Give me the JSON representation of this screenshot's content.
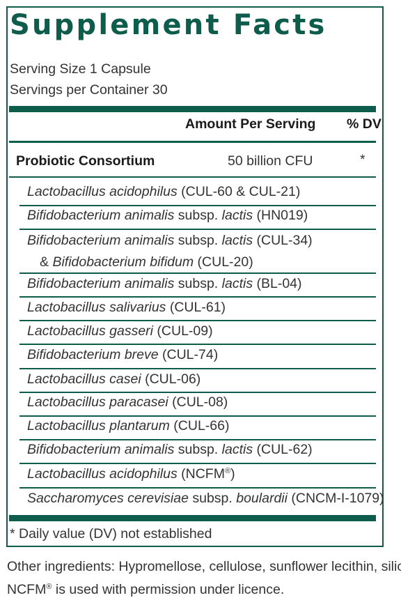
{
  "title": "Supplement Facts",
  "serving_size": "Serving Size 1 Capsule",
  "servings_per_container": "Servings per Container 30",
  "header": {
    "amount": "Amount Per Serving",
    "dv": "% DV"
  },
  "consortium": {
    "name": "Probiotic Consortium",
    "amount": "50 billion CFU",
    "dv": "*"
  },
  "strains": [
    {
      "italic": "Lactobacillus acidophilus",
      "rest": " (CUL-60 & CUL-21)"
    },
    {
      "italic": "Bifidobacterium animalis",
      "mid": " subsp. ",
      "italic2": "lactis",
      "rest": " (HN019)"
    },
    {
      "italic": "Bifidobacterium animalis",
      "mid": " subsp. ",
      "italic2": "lactis",
      "rest": " (CUL-34)",
      "line2_prefix": "& ",
      "line2_italic": "Bifidobacterium bifidum",
      "line2_rest": " (CUL-20)"
    },
    {
      "italic": "Bifidobacterium animalis",
      "mid": " subsp. ",
      "italic2": "lactis",
      "rest": " (BL-04)"
    },
    {
      "italic": "Lactobacillus salivarius",
      "rest": " (CUL-61)"
    },
    {
      "italic": "Lactobacillus gasseri",
      "rest": " (CUL-09)"
    },
    {
      "italic": "Bifidobacterium breve",
      "rest": " (CUL-74)"
    },
    {
      "italic": "Lactobacillus casei",
      "rest": " (CUL-06)"
    },
    {
      "italic": "Lactobacillus paracasei",
      "rest": " (CUL-08)"
    },
    {
      "italic": "Lactobacillus plantarum",
      "rest": " (CUL-66)"
    },
    {
      "italic": "Bifidobacterium animalis",
      "mid": " subsp. ",
      "italic2": "lactis",
      "rest": " (CUL-62)"
    },
    {
      "italic": "Lactobacillus acidophilus",
      "rest": " (NCFM",
      "sup": "®",
      "rest2": ")"
    },
    {
      "italic": "Saccharomyces cerevisiae",
      "mid": " subsp. ",
      "italic2": "boulardii",
      "rest": " (CNCM-I-1079)"
    }
  ],
  "footnote": "* Daily value (DV) not established",
  "other_ingredients": "Other ingredients: Hypromellose, cellulose, sunflower lecithin, silica",
  "ncfm_note": {
    "prefix": "NCFM",
    "sup": "®",
    "text": " is used with permission under licence."
  },
  "colors": {
    "accent": "#0d5c4c",
    "text": "#333333"
  }
}
